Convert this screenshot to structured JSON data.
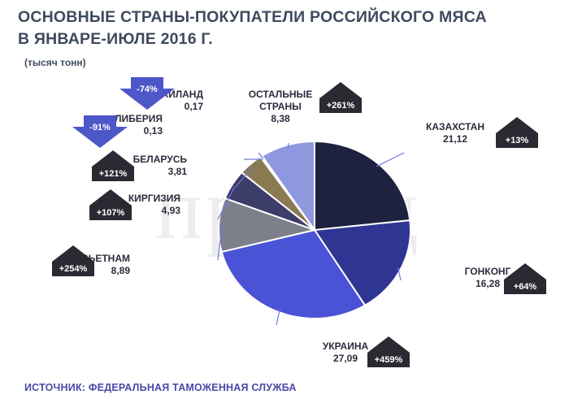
{
  "title_line1": "ОСНОВНЫЕ СТРАНЫ-ПОКУПАТЕЛИ РОССИЙСКОГО МЯСА",
  "title_line2": "В ЯНВАРЕ-ИЮЛЕ 2016 Г.",
  "unit": "(тысяч тонн)",
  "source": "ИСТОЧНИК: ФЕДЕРАЛЬНАЯ ТАМОЖЕННАЯ СЛУЖБА",
  "watermark": "прозэд",
  "chart_data": {
    "type": "pie",
    "slices": [
      {
        "label": [
          "КАЗАХСТАН"
        ],
        "value_text": "21,12",
        "value": 21.12,
        "change": "+13%",
        "direction": "up",
        "color": "#1e2140"
      },
      {
        "label": [
          "ГОНКОНГ"
        ],
        "value_text": "16,28",
        "value": 16.28,
        "change": "+64%",
        "direction": "up",
        "color": "#2f3592"
      },
      {
        "label": [
          "УКРАИНА"
        ],
        "value_text": "27,09",
        "value": 27.09,
        "change": "+459%",
        "direction": "up",
        "color": "#4a52d6"
      },
      {
        "label": [
          "ВЬЕТНАМ"
        ],
        "value_text": "8,89",
        "value": 8.89,
        "change": "+254%",
        "direction": "up",
        "color": "#7d808a"
      },
      {
        "label": [
          "КИРГИЗИЯ"
        ],
        "value_text": "4,93",
        "value": 4.93,
        "change": "+107%",
        "direction": "up",
        "color": "#3c3d68"
      },
      {
        "label": [
          "БЕЛАРУСЬ"
        ],
        "value_text": "3,81",
        "value": 3.81,
        "change": "+121%",
        "direction": "up",
        "color": "#8a7a52"
      },
      {
        "label": [
          "ЛИБЕРИЯ"
        ],
        "value_text": "0,13",
        "value": 0.13,
        "change": "-91%",
        "direction": "down",
        "color": "#c9ccde"
      },
      {
        "label": [
          "ТАИЛАНД"
        ],
        "value_text": "0,17",
        "value": 0.17,
        "change": "-74%",
        "direction": "down",
        "color": "#d9dbe8"
      },
      {
        "label": [
          "ОСТАЛЬНЫЕ",
          "СТРАНЫ"
        ],
        "value_text": "8,38",
        "value": 8.38,
        "change": "+261%",
        "direction": "up",
        "color": "#8f97de"
      }
    ]
  }
}
